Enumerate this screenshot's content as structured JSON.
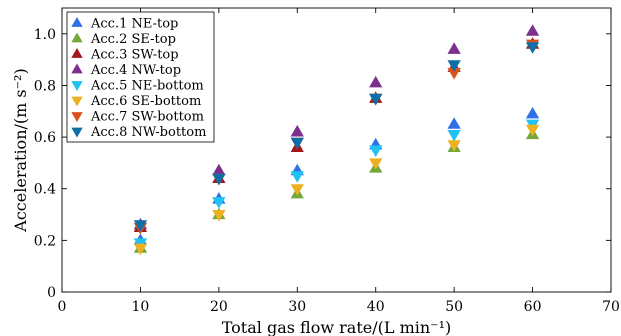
{
  "chart_data": {
    "type": "scatter",
    "xlabel": "Total gas flow rate/(L min⁻¹)",
    "ylabel": "Acceleration/(m s⁻²)",
    "xlim": [
      0,
      70
    ],
    "ylim": [
      0,
      1.1
    ],
    "xticks": [
      0,
      10,
      20,
      30,
      40,
      50,
      60,
      70
    ],
    "yticks": [
      0,
      0.2,
      0.4,
      0.6,
      0.8,
      1.0
    ],
    "xtick_labels": [
      "0",
      "10",
      "20",
      "30",
      "40",
      "50",
      "60",
      "70"
    ],
    "ytick_labels": [
      "0",
      "0.2",
      "0.4",
      "0.6",
      "0.8",
      "1.0"
    ],
    "grid": false,
    "legend_position": "top-left",
    "x": [
      10,
      20,
      30,
      40,
      50,
      60
    ],
    "series": [
      {
        "name": "Acc.1 NE-top",
        "marker": "triangle-up",
        "color": "#2f6fe8",
        "values": [
          0.2,
          0.36,
          0.47,
          0.57,
          0.65,
          0.69
        ]
      },
      {
        "name": "Acc.2 SE-top",
        "marker": "triangle-up",
        "color": "#72a83a",
        "values": [
          0.17,
          0.3,
          0.38,
          0.48,
          0.56,
          0.61
        ]
      },
      {
        "name": "Acc.3 SW-top",
        "marker": "triangle-up",
        "color": "#a3171c",
        "values": [
          0.25,
          0.44,
          0.56,
          0.75,
          0.87,
          0.96
        ]
      },
      {
        "name": "Acc.4 NW-top",
        "marker": "triangle-up",
        "color": "#7e2f8e",
        "values": [
          0.26,
          0.47,
          0.62,
          0.81,
          0.94,
          1.01
        ]
      },
      {
        "name": "Acc.5 NE-bottom",
        "marker": "triangle-down",
        "color": "#1fc2f0",
        "values": [
          0.19,
          0.35,
          0.45,
          0.55,
          0.61,
          0.65
        ]
      },
      {
        "name": "Acc.6 SE-bottom",
        "marker": "triangle-down",
        "color": "#edb120",
        "values": [
          0.17,
          0.3,
          0.4,
          0.5,
          0.57,
          0.63
        ]
      },
      {
        "name": "Acc.7 SW-bottom",
        "marker": "triangle-down",
        "color": "#d95319",
        "values": [
          0.25,
          0.44,
          0.58,
          0.75,
          0.85,
          0.96
        ]
      },
      {
        "name": "Acc.8 NW-bottom",
        "marker": "triangle-down",
        "color": "#0f6ea6",
        "values": [
          0.26,
          0.44,
          0.58,
          0.75,
          0.88,
          0.95
        ]
      }
    ]
  }
}
